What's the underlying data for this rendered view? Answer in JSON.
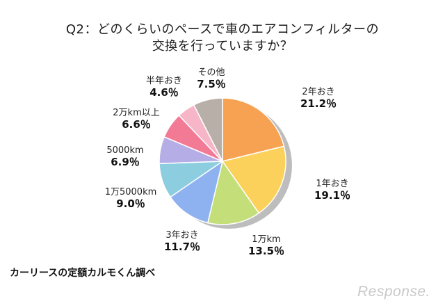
{
  "title_line1": "Q2：どのくらいのペースで車のエアコンフィルターの",
  "title_line2": "交換を行っていますか？",
  "source": "カーリースの定額カルモくん調べ",
  "logo_text": "Response.",
  "chart_data": {
    "type": "pie",
    "unit": "%",
    "slices": [
      {
        "label": "2年おき",
        "value": 21.2,
        "display": "21.2％",
        "color": "#f7a152"
      },
      {
        "label": "1年おき",
        "value": 19.1,
        "display": "19.1％",
        "color": "#fbd15b"
      },
      {
        "label": "1万km",
        "value": 13.5,
        "display": "13.5％",
        "color": "#c4de79"
      },
      {
        "label": "3年おき",
        "value": 11.7,
        "display": "11.7％",
        "color": "#8eb1ef"
      },
      {
        "label": "1万5000km",
        "value": 9.0,
        "display": "9.0％",
        "color": "#8ccde0"
      },
      {
        "label": "5000km",
        "value": 6.9,
        "display": "6.9％",
        "color": "#b5aee6"
      },
      {
        "label": "2万km以上",
        "value": 6.6,
        "display": "6.6％",
        "color": "#f27a95"
      },
      {
        "label": "半年おき",
        "value": 4.6,
        "display": "4.6％",
        "color": "#f7b5c8"
      },
      {
        "label": "その他",
        "value": 7.5,
        "display": "7.5％",
        "color": "#b8b0a8"
      }
    ]
  }
}
